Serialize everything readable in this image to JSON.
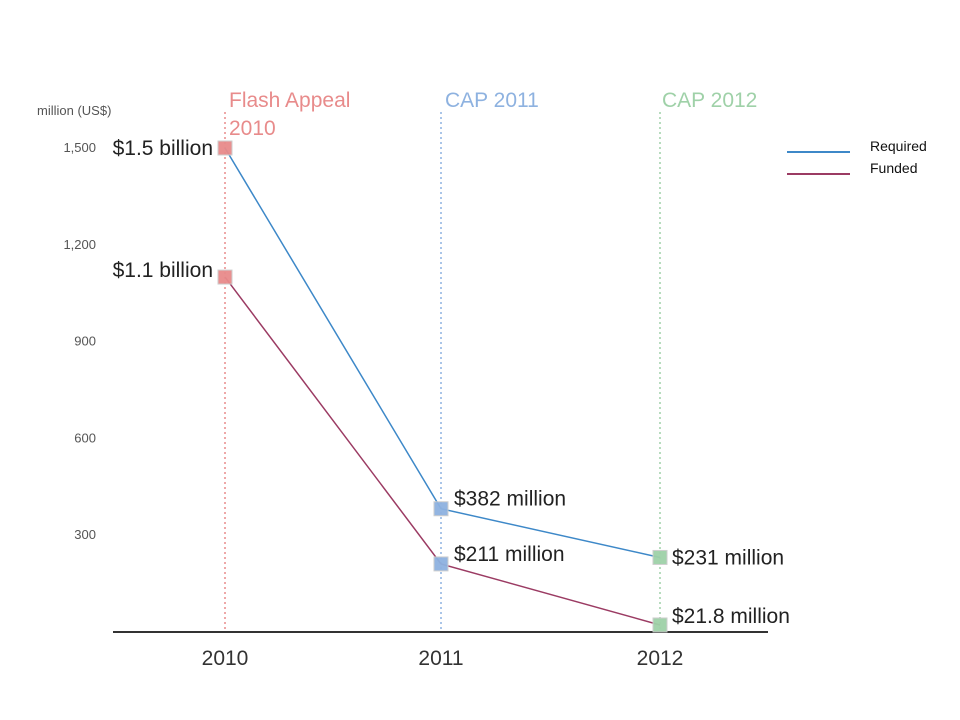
{
  "chart_data": {
    "type": "line",
    "categories": [
      "2010",
      "2011",
      "2012"
    ],
    "ylabel": "million (US$)",
    "ylim": [
      0,
      1500
    ],
    "yticks": [
      "300",
      "600",
      "900",
      "1,200",
      "1,500"
    ],
    "grid": false,
    "legend_position": "top-right",
    "period_labels": [
      {
        "text": "Flash Appeal 2010",
        "lines": [
          "Flash Appeal",
          "2010"
        ],
        "color": "#e88b8b"
      },
      {
        "text": "CAP 2011",
        "lines": [
          "CAP 2011"
        ],
        "color": "#8eb2e0"
      },
      {
        "text": "CAP 2012",
        "lines": [
          "CAP 2012"
        ],
        "color": "#9fd1a8"
      }
    ],
    "marker_colors": [
      "#e88b8b",
      "#8eb2e0",
      "#9fd1a8"
    ],
    "series": [
      {
        "name": "Required",
        "color": "#3d88c8",
        "values": [
          1500,
          382,
          231
        ],
        "labels": [
          "$1.5 billion",
          "$382 million",
          "$231 million"
        ]
      },
      {
        "name": "Funded",
        "color": "#9b3b63",
        "values": [
          1100,
          211,
          21.8
        ],
        "labels": [
          "$1.1 billion",
          "$211 million",
          "$21.8 million"
        ]
      }
    ]
  }
}
